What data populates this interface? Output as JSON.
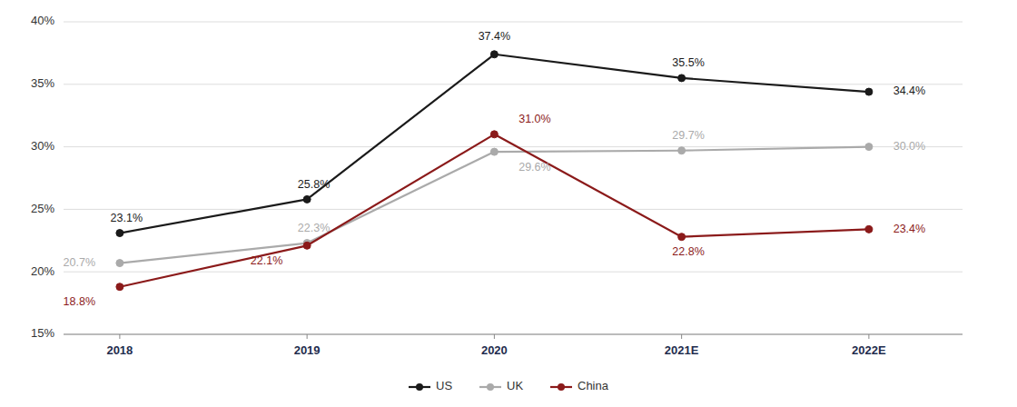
{
  "chart_data": {
    "type": "line",
    "categories": [
      "2018",
      "2019",
      "2020",
      "2021E",
      "2022E"
    ],
    "series": [
      {
        "name": "US",
        "color": "#1a1a1a",
        "marker": "circle",
        "values": [
          23.1,
          25.8,
          37.4,
          35.5,
          34.4
        ],
        "value_labels": [
          "23.1%",
          "25.8%",
          "37.4%",
          "35.5%",
          "34.4%"
        ]
      },
      {
        "name": "UK",
        "color": "#aaaaaa",
        "marker": "circle",
        "values": [
          20.7,
          22.3,
          29.6,
          29.7,
          30.0
        ],
        "value_labels": [
          "20.7%",
          "22.3%",
          "29.6%",
          "29.7%",
          "30.0%"
        ]
      },
      {
        "name": "China",
        "color": "#8b1a1a",
        "marker": "circle",
        "values": [
          18.8,
          22.1,
          31.0,
          22.8,
          23.4
        ],
        "value_labels": [
          "18.8%",
          "22.1%",
          "31.0%",
          "22.8%",
          "23.4%"
        ]
      }
    ],
    "ylim": [
      15,
      40
    ],
    "yticks": [
      {
        "value": 15,
        "label": "15%"
      },
      {
        "value": 20,
        "label": "20%"
      },
      {
        "value": 25,
        "label": "25%"
      },
      {
        "value": 30,
        "label": "30%"
      },
      {
        "value": 35,
        "label": "35%"
      },
      {
        "value": 40,
        "label": "40%"
      }
    ],
    "grid": true,
    "legend": "bottom",
    "data_labels": true
  }
}
